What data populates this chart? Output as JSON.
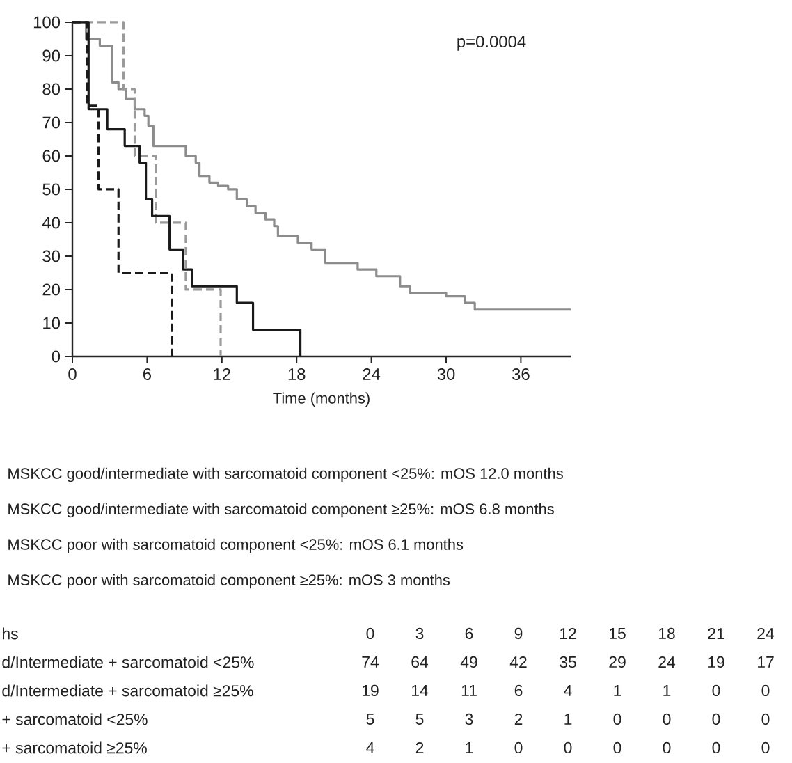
{
  "chart_data": {
    "type": "step",
    "xlabel": "Time (months)",
    "xlim": [
      0,
      40
    ],
    "xticks": [
      0,
      6,
      12,
      18,
      24,
      30,
      36
    ],
    "ylim": [
      0,
      100
    ],
    "yticks": [
      0,
      10,
      20,
      30,
      40,
      50,
      60,
      70,
      80,
      90,
      100
    ],
    "series": [
      {
        "color": "#8c8c8c",
        "line_style": "solid",
        "x": [
          0,
          1.0,
          1.1,
          2.2,
          3.2,
          3.7,
          4.3,
          5.0,
          5.8,
          6.1,
          6.5,
          9.1,
          9.9,
          10.2,
          11.0,
          11.7,
          12.5,
          13.2,
          14.0,
          14.7,
          15.5,
          16.2,
          16.5,
          18.1,
          19.2,
          20.3,
          22.9,
          24.4,
          26.3,
          27.1,
          30.0,
          31.5,
          32.3,
          40
        ],
        "values": [
          100,
          100,
          95,
          93,
          82,
          80,
          77,
          74,
          72,
          69,
          63,
          60,
          58,
          54,
          52,
          51,
          50,
          47,
          45,
          43,
          41,
          39,
          36,
          34,
          32,
          28,
          26,
          24,
          21,
          19,
          18,
          16,
          14,
          14
        ]
      },
      {
        "color": "#9a9a9a",
        "line_style": "dashed",
        "x": [
          0,
          4.1,
          5.0,
          6.7,
          9.1,
          11.9
        ],
        "values": [
          100,
          80,
          60,
          40,
          20,
          0
        ]
      },
      {
        "color": "#1a1a1a",
        "line_style": "solid",
        "x": [
          0,
          1.3,
          2.8,
          4.2,
          5.4,
          5.9,
          6.4,
          7.8,
          8.9,
          9.6,
          13.2,
          14.5,
          18.3
        ],
        "values": [
          100,
          74,
          68,
          63,
          58,
          47,
          42,
          32,
          26,
          21,
          16,
          8,
          0
        ]
      },
      {
        "color": "#1a1a1a",
        "line_style": "dashed",
        "x": [
          0,
          1.2,
          2.1,
          3.7,
          8.0
        ],
        "values": [
          100,
          75,
          50,
          25,
          0
        ]
      }
    ],
    "annotations": [
      "p=0.0004",
      "MSKCC good/intermediate with sarcomatoid component <25%: mOS 12.0 months",
      "MSKCC good/intermediate with sarcomatoid component ≥25%: mOS 6.8 months",
      "MSKCC poor with sarcomatoid component <25%: mOS 6.1 months",
      "MSKCC poor with sarcomatoid component ≥25%: mOS 3 months",
      "hs",
      "d/Intermediate + sarcomatoid <25%",
      "d/Intermediate + sarcomatoid ≥25%",
      "+ sarcomatoid <25%",
      "+ sarcomatoid ≥25%",
      "0",
      "3",
      "6",
      "9",
      "12",
      "15",
      "18",
      "21",
      "24",
      "74",
      "64",
      "49",
      "42",
      "35",
      "29",
      "24",
      "19",
      "17",
      "19",
      "14",
      "11",
      "6",
      "4",
      "1",
      "1",
      "0",
      "0",
      "5",
      "5",
      "3",
      "2",
      "1",
      "0",
      "0",
      "0",
      "0",
      "4",
      "2",
      "1",
      "0",
      "0",
      "0",
      "0",
      "0",
      "0"
    ]
  }
}
